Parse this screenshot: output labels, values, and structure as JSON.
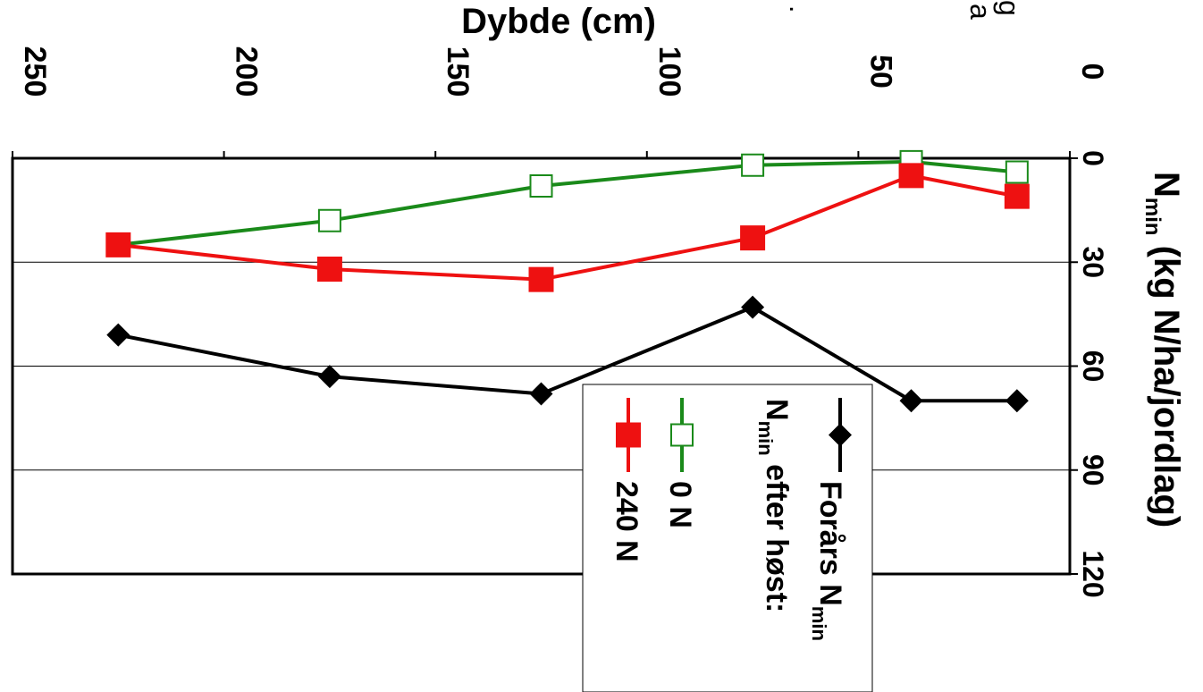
{
  "chart_data": {
    "type": "line",
    "orientation": "rotated 90° clockwise",
    "title": "",
    "xlabel": "Dybde (cm)",
    "ylabel_main": "N",
    "ylabel_sub": "min",
    "ylabel_rest": " (kg N/ha/jordlag)",
    "xlim": [
      0,
      250
    ],
    "ylim": [
      0,
      120
    ],
    "xticks": [
      0,
      50,
      100,
      150,
      200,
      250
    ],
    "yticks": [
      0,
      30,
      60,
      90,
      120
    ],
    "grid": "horizontal gridlines at 30, 60, 90",
    "legend_placement": "bottom-right",
    "legend": {
      "spring_label": "Forårs N",
      "spring_sub": "min",
      "after_main": "N",
      "after_sub": "min",
      "after_rest": " efter høst:"
    },
    "series": [
      {
        "key": "spring",
        "name": "Forårs N min",
        "color": "#000000",
        "marker": "diamond",
        "points": [
          [
            12.5,
            70
          ],
          [
            37.5,
            70
          ],
          [
            75,
            43
          ],
          [
            125,
            68
          ],
          [
            175,
            63
          ],
          [
            225,
            51
          ]
        ]
      },
      {
        "key": "n0",
        "name": "0 N",
        "color": "#1a8a1a",
        "marker": "square-open",
        "points": [
          [
            12.5,
            4
          ],
          [
            37.5,
            1
          ],
          [
            75,
            2
          ],
          [
            125,
            8
          ],
          [
            175,
            18
          ],
          [
            225,
            25
          ]
        ]
      },
      {
        "key": "n240",
        "name": "240 N",
        "color": "#ee1111",
        "marker": "square-filled",
        "points": [
          [
            12.5,
            11
          ],
          [
            37.5,
            5
          ],
          [
            75,
            23
          ],
          [
            125,
            35
          ],
          [
            175,
            32
          ],
          [
            225,
            25
          ]
        ]
      }
    ]
  },
  "corner_fragments": {
    "a": ".",
    "b": "g",
    "c": "a"
  }
}
